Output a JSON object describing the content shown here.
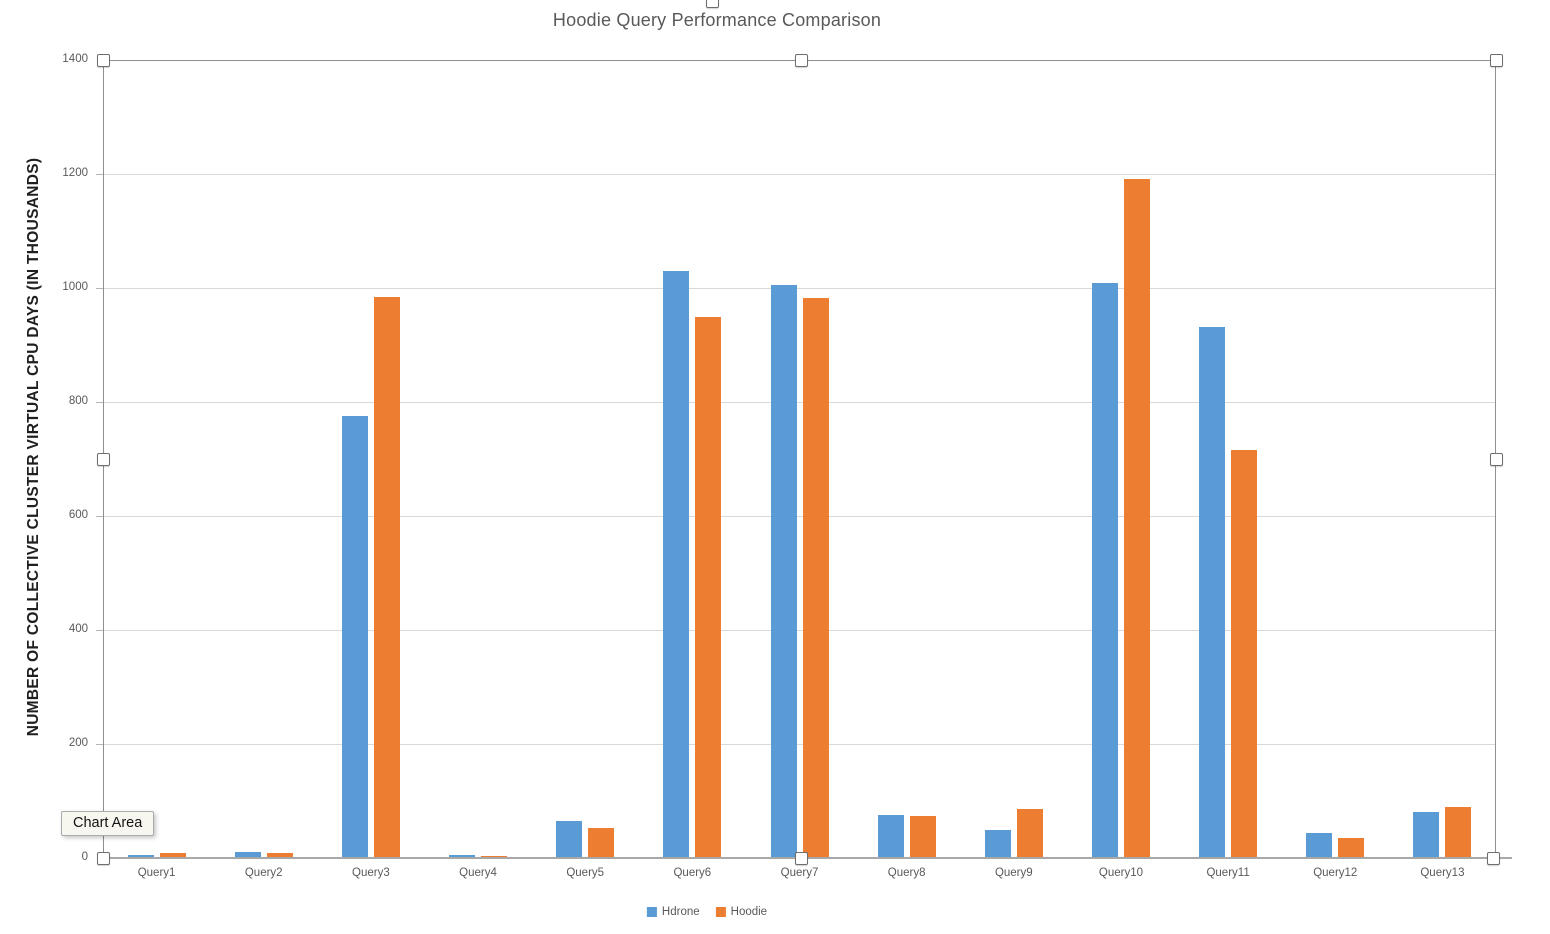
{
  "title": "Hoodie Query Performance Comparison",
  "tooltip_label": "Chart Area",
  "chart_data": {
    "type": "bar",
    "title": "Hoodie Query Performance Comparison",
    "categories": [
      "Query1",
      "Query2",
      "Query3",
      "Query4",
      "Query5",
      "Query6",
      "Query7",
      "Query8",
      "Query9",
      "Query10",
      "Query11",
      "Query12",
      "Query13"
    ],
    "series": [
      {
        "name": "Hdrone",
        "color": "#5B9BD5",
        "values": [
          5,
          10,
          775,
          5,
          65,
          1030,
          1005,
          75,
          49,
          1008,
          932,
          44,
          81
        ]
      },
      {
        "name": "Hoodie",
        "color": "#ED7D31",
        "values": [
          9,
          9,
          985,
          4,
          52,
          950,
          983,
          74,
          86,
          1192,
          716,
          35,
          90
        ]
      }
    ],
    "xlabel": "",
    "ylabel": "NUMBER OF COLLECTIVE CLUSTER VIRTUAL CPU DAYS (IN THOUSANDS)",
    "ylim": [
      0,
      1400
    ],
    "yticks": [
      0,
      200,
      400,
      600,
      800,
      1000,
      1200,
      1400
    ],
    "grid": true,
    "legend_position": "bottom"
  }
}
